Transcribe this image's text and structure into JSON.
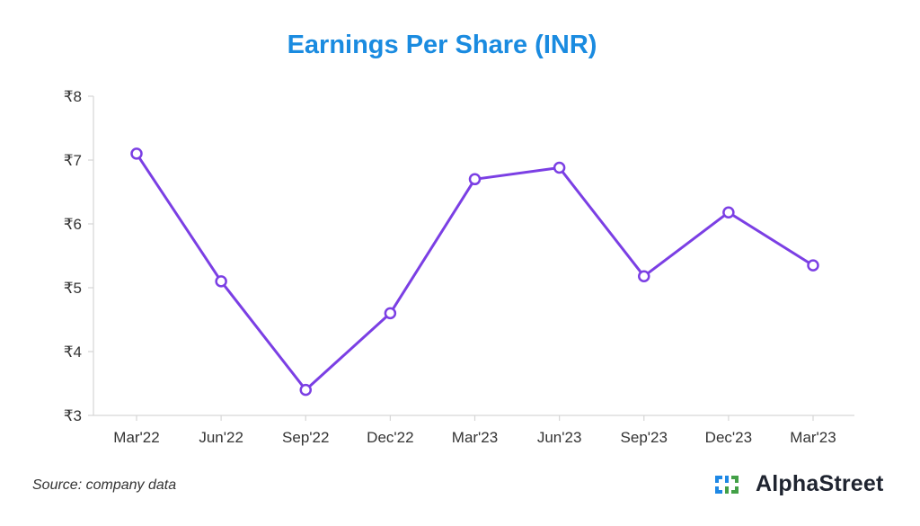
{
  "colors": {
    "title": "#1a8be0",
    "line": "#7b3fe4",
    "marker_fill": "#ffffff",
    "axis": "#d6d6d6",
    "text": "#333333"
  },
  "footer": {
    "source": "Source: company data",
    "brand": "AlphaStreet",
    "brand_icon": "alphastreet-logo-icon"
  },
  "chart_data": {
    "type": "line",
    "title": "Earnings Per Share (INR)",
    "xlabel": "",
    "ylabel": "",
    "categories": [
      "Mar'22",
      "Jun'22",
      "Sep'22",
      "Dec'22",
      "Mar'23",
      "Jun'23",
      "Sep'23",
      "Dec'23",
      "Mar'23"
    ],
    "series": [
      {
        "values": [
          7.1,
          5.1,
          3.4,
          4.6,
          6.7,
          6.88,
          5.18,
          6.18,
          5.35
        ]
      }
    ],
    "ylim": [
      3,
      8
    ],
    "yticks": [
      3,
      4,
      5,
      6,
      7,
      8
    ],
    "ytick_labels": [
      "₹3",
      "₹4",
      "₹5",
      "₹6",
      "₹7",
      "₹8"
    ],
    "grid": false,
    "legend": "none"
  }
}
